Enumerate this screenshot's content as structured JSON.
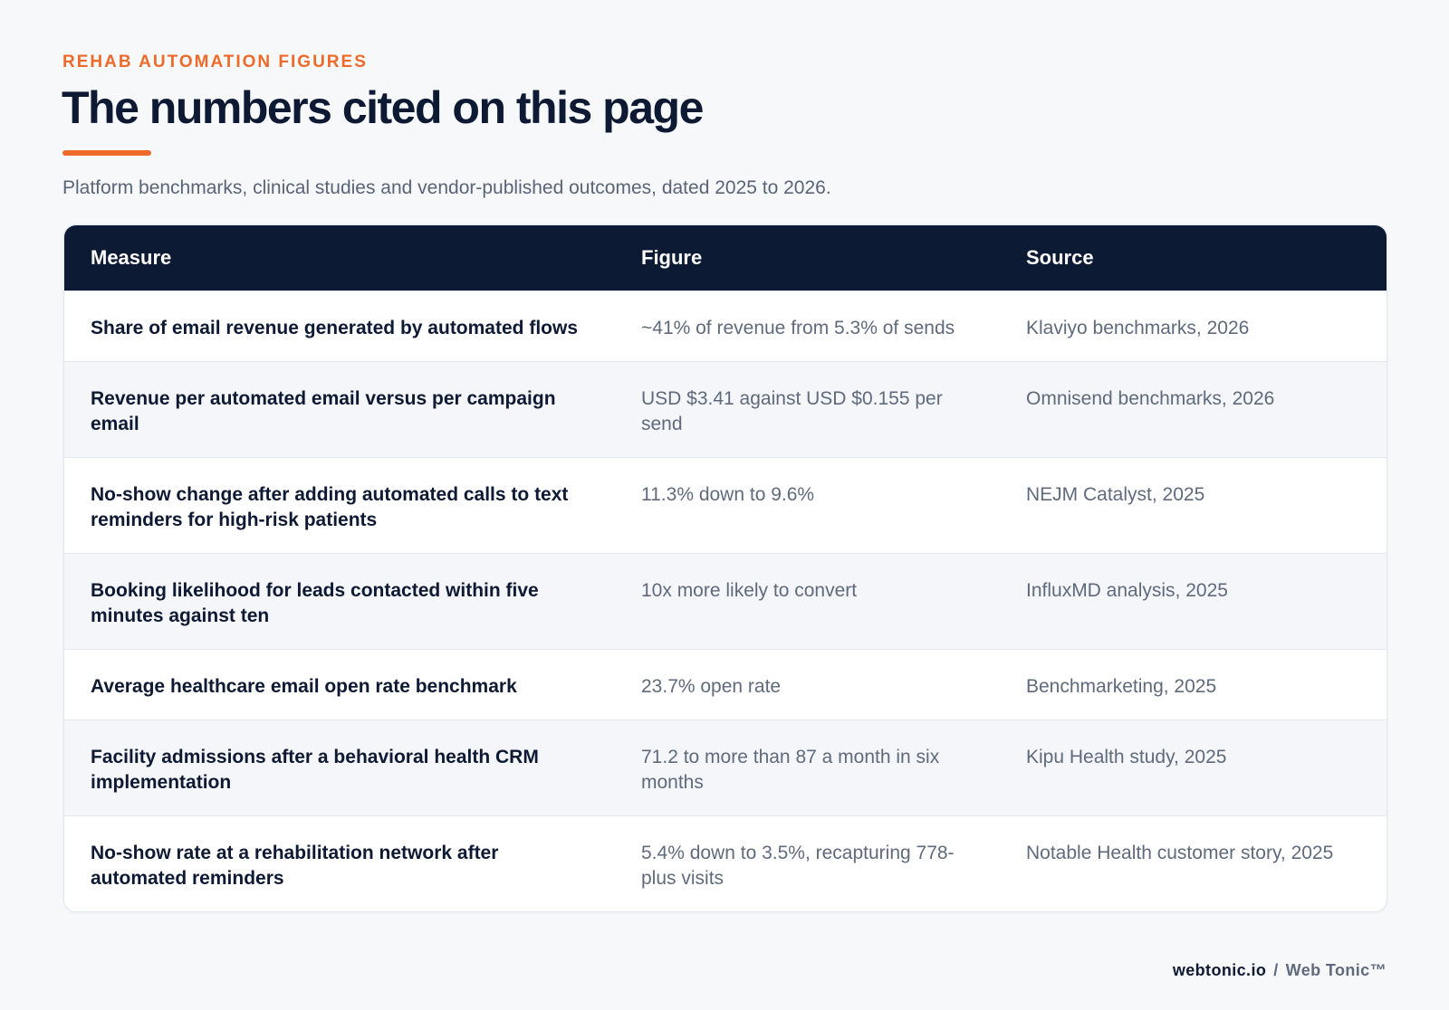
{
  "header": {
    "eyebrow": "REHAB AUTOMATION FIGURES",
    "title": "The numbers cited on this page",
    "subtitle": "Platform benchmarks, clinical studies and vendor-published outcomes, dated 2025 to 2026.",
    "accent_color": "#ee6a2a"
  },
  "table": {
    "columns": [
      "Measure",
      "Figure",
      "Source"
    ],
    "header_color": "#0d1a33",
    "rows": [
      {
        "measure": "Share of email revenue generated by automated flows",
        "figure": "~41% of revenue from 5.3% of sends",
        "source": "Klaviyo benchmarks, 2026"
      },
      {
        "measure": "Revenue per automated email versus per campaign email",
        "figure": "USD $3.41 against USD $0.155 per send",
        "source": "Omnisend benchmarks, 2026"
      },
      {
        "measure": "No-show change after adding automated calls to text reminders for high-risk patients",
        "figure": "11.3% down to 9.6%",
        "source": "NEJM Catalyst, 2025"
      },
      {
        "measure": "Booking likelihood for leads contacted within five minutes against ten",
        "figure": "10x more likely to convert",
        "source": "InfluxMD analysis, 2025"
      },
      {
        "measure": "Average healthcare email open rate benchmark",
        "figure": "23.7% open rate",
        "source": "Benchmarketing, 2025"
      },
      {
        "measure": "Facility admissions after a behavioral health CRM implementation",
        "figure": "71.2 to more than 87 a month in six months",
        "source": "Kipu Health study, 2025"
      },
      {
        "measure": "No-show rate at a rehabilitation network after automated reminders",
        "figure": "5.4% down to 3.5%, recapturing 778-plus visits",
        "source": "Notable Health customer story, 2025"
      }
    ]
  },
  "footer": {
    "site": "webtonic.io",
    "separator": "/",
    "brand": "Web Tonic™"
  }
}
